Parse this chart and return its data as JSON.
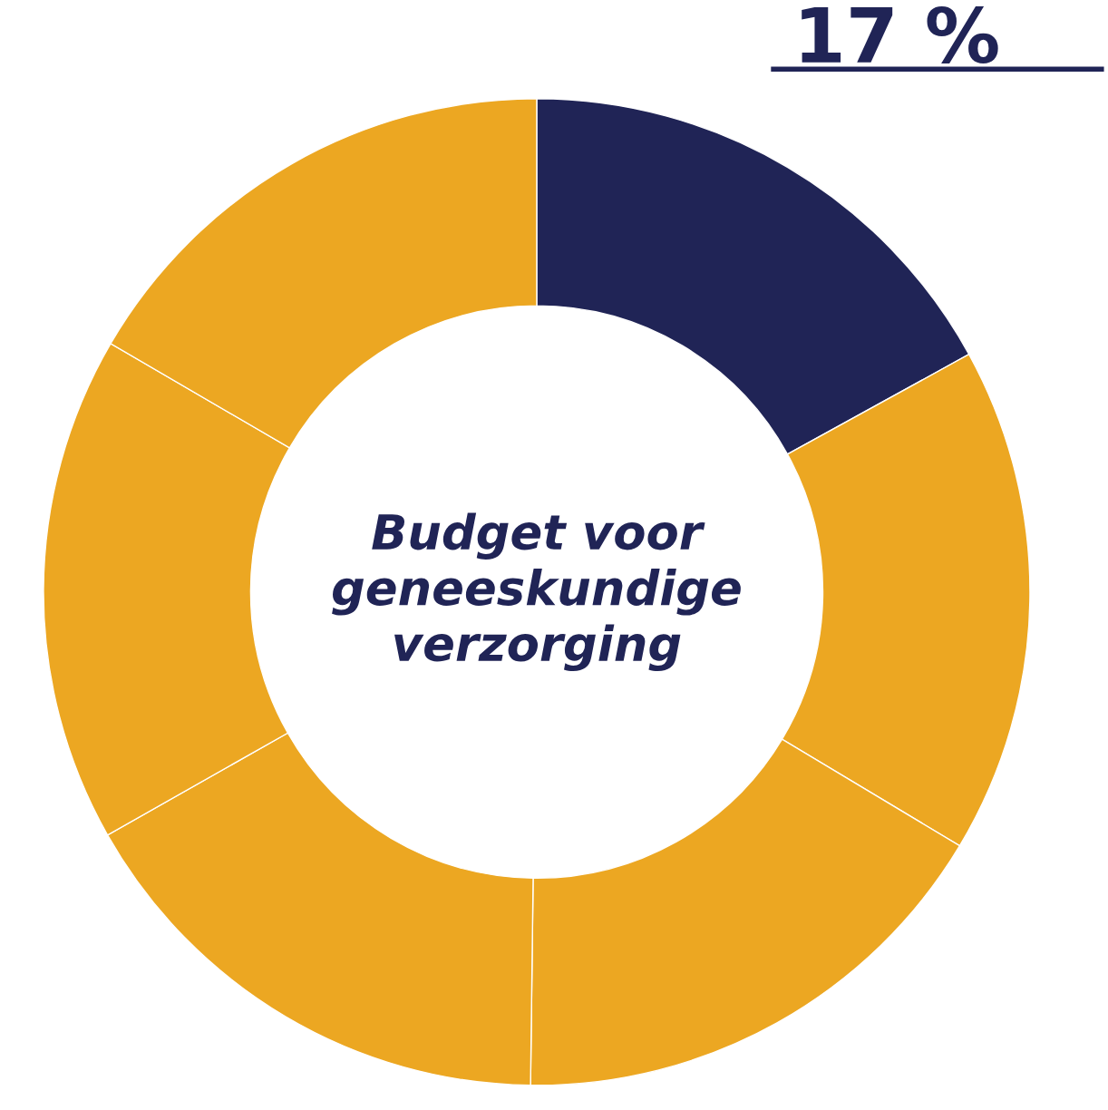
{
  "chart_data": {
    "type": "donut",
    "title": "Budget voor\ngeneeskundige\nverzorging",
    "categories": [
      null,
      null,
      null,
      null,
      null,
      null
    ],
    "values": [
      17,
      16.6,
      16.6,
      16.6,
      16.6,
      16.6
    ],
    "colors": [
      "#202456",
      "#eca722",
      "#eca722",
      "#eca722",
      "#eca722",
      "#eca722"
    ],
    "annotations": [
      {
        "text": "17 %"
      }
    ]
  }
}
